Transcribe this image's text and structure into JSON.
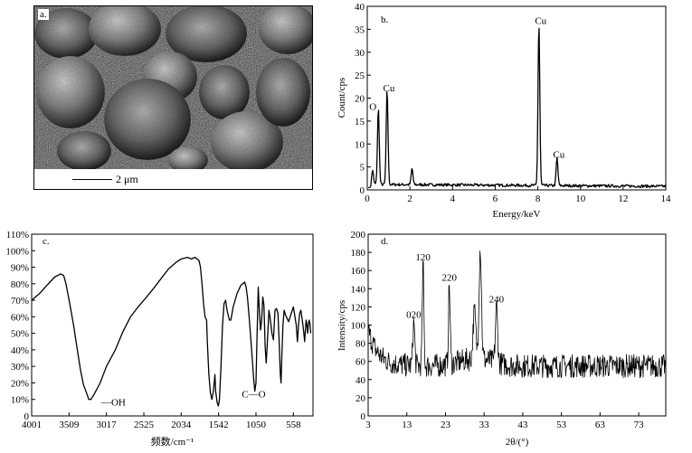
{
  "panel_a": {
    "label": "a.",
    "scale_text": "2 μm"
  },
  "chart_data": [
    {
      "panel": "b.",
      "type": "line",
      "xlabel": "Energy/keV",
      "ylabel": "Count/cps",
      "xlim": [
        0,
        14
      ],
      "ylim": [
        0,
        40
      ],
      "xticks": [
        0,
        2,
        4,
        6,
        8,
        10,
        12,
        14
      ],
      "yticks": [
        0,
        5,
        10,
        15,
        20,
        25,
        30,
        35,
        40
      ],
      "baseline": 1.2,
      "peaks": [
        {
          "x": 0.25,
          "y": 3,
          "label": ""
        },
        {
          "x": 0.52,
          "y": 16.5,
          "label": "O"
        },
        {
          "x": 0.93,
          "y": 20.5,
          "label": "Cu"
        },
        {
          "x": 2.1,
          "y": 3.5,
          "label": ""
        },
        {
          "x": 8.05,
          "y": 35.2,
          "label": "Cu"
        },
        {
          "x": 8.9,
          "y": 6,
          "label": "Cu"
        }
      ]
    },
    {
      "panel": "c.",
      "type": "line",
      "xlabel": "频数/cm⁻¹",
      "ylabel": "",
      "xlim": [
        4001,
        300
      ],
      "ylim": [
        0,
        110
      ],
      "xticks": [
        4001,
        3509,
        3017,
        2525,
        2034,
        1542,
        1050,
        558
      ],
      "ytick_labels": [
        "0",
        "10%",
        "20%",
        "30%",
        "40%",
        "50%",
        "60%",
        "70%",
        "80%",
        "90%",
        "100%",
        "110%"
      ],
      "points": [
        [
          4001,
          70
        ],
        [
          3900,
          74
        ],
        [
          3800,
          79
        ],
        [
          3700,
          84
        ],
        [
          3620,
          86
        ],
        [
          3580,
          85
        ],
        [
          3550,
          80
        ],
        [
          3500,
          68
        ],
        [
          3450,
          55
        ],
        [
          3400,
          40
        ],
        [
          3360,
          28
        ],
        [
          3320,
          19
        ],
        [
          3280,
          14
        ],
        [
          3250,
          10
        ],
        [
          3220,
          10
        ],
        [
          3180,
          13
        ],
        [
          3100,
          20
        ],
        [
          3017,
          30
        ],
        [
          2900,
          40
        ],
        [
          2800,
          51
        ],
        [
          2700,
          60
        ],
        [
          2600,
          66
        ],
        [
          2525,
          70
        ],
        [
          2400,
          77
        ],
        [
          2300,
          83
        ],
        [
          2200,
          89
        ],
        [
          2100,
          93
        ],
        [
          2034,
          95
        ],
        [
          1950,
          96
        ],
        [
          1900,
          95
        ],
        [
          1850,
          96
        ],
        [
          1800,
          94
        ],
        [
          1780,
          90
        ],
        [
          1760,
          80
        ],
        [
          1740,
          68
        ],
        [
          1720,
          60
        ],
        [
          1710,
          59
        ],
        [
          1700,
          58
        ],
        [
          1690,
          45
        ],
        [
          1670,
          25
        ],
        [
          1650,
          14
        ],
        [
          1630,
          10
        ],
        [
          1610,
          15
        ],
        [
          1600,
          20
        ],
        [
          1590,
          25
        ],
        [
          1580,
          15
        ],
        [
          1560,
          8
        ],
        [
          1545,
          6
        ],
        [
          1530,
          10
        ],
        [
          1510,
          30
        ],
        [
          1490,
          55
        ],
        [
          1470,
          68
        ],
        [
          1450,
          70
        ],
        [
          1430,
          64
        ],
        [
          1400,
          58
        ],
        [
          1380,
          58
        ],
        [
          1350,
          66
        ],
        [
          1300,
          74
        ],
        [
          1250,
          79
        ],
        [
          1200,
          81
        ],
        [
          1180,
          78
        ],
        [
          1160,
          71
        ],
        [
          1140,
          60
        ],
        [
          1120,
          48
        ],
        [
          1100,
          35
        ],
        [
          1080,
          22
        ],
        [
          1065,
          15
        ],
        [
          1050,
          20
        ],
        [
          1040,
          40
        ],
        [
          1030,
          60
        ],
        [
          1020,
          78
        ],
        [
          1010,
          68
        ],
        [
          990,
          52
        ],
        [
          975,
          58
        ],
        [
          960,
          72
        ],
        [
          945,
          67
        ],
        [
          930,
          42
        ],
        [
          915,
          32
        ],
        [
          900,
          45
        ],
        [
          880,
          64
        ],
        [
          860,
          58
        ],
        [
          840,
          50
        ],
        [
          820,
          46
        ],
        [
          800,
          64
        ],
        [
          780,
          65
        ],
        [
          760,
          62
        ],
        [
          745,
          45
        ],
        [
          730,
          25
        ],
        [
          720,
          20
        ],
        [
          710,
          35
        ],
        [
          695,
          55
        ],
        [
          680,
          64
        ],
        [
          660,
          61
        ],
        [
          640,
          59
        ],
        [
          620,
          57
        ],
        [
          600,
          60
        ],
        [
          580,
          63
        ],
        [
          558,
          66
        ],
        [
          540,
          61
        ],
        [
          520,
          55
        ],
        [
          505,
          45
        ],
        [
          490,
          55
        ],
        [
          475,
          62
        ],
        [
          460,
          64
        ],
        [
          440,
          58
        ],
        [
          420,
          50
        ],
        [
          410,
          45
        ],
        [
          400,
          52
        ],
        [
          390,
          58
        ],
        [
          380,
          55
        ],
        [
          370,
          50
        ],
        [
          360,
          56
        ],
        [
          350,
          58
        ],
        [
          340,
          56
        ],
        [
          330,
          50
        ]
      ],
      "annotations": [
        {
          "x": 3180,
          "y": 10,
          "text": "—OH"
        },
        {
          "x": 1070,
          "y": 15,
          "text": "C—O"
        }
      ]
    },
    {
      "panel": "d.",
      "type": "line",
      "xlabel": "2θ/(°)",
      "ylabel": "Intensity/cps",
      "xlim": [
        3,
        80
      ],
      "ylim": [
        0,
        200
      ],
      "xticks": [
        3,
        13,
        23,
        33,
        43,
        53,
        63,
        73
      ],
      "yticks": [
        0,
        20,
        40,
        60,
        80,
        100,
        120,
        140,
        160,
        180,
        200
      ],
      "peaks": [
        {
          "x": 14.8,
          "y": 103,
          "w": 0.35,
          "label": "020"
        },
        {
          "x": 17.2,
          "y": 166,
          "w": 0.3,
          "label": "120"
        },
        {
          "x": 24.0,
          "y": 144,
          "w": 0.3,
          "label": "220"
        },
        {
          "x": 30.5,
          "y": 115,
          "w": 0.5,
          "label": ""
        },
        {
          "x": 32.0,
          "y": 185,
          "w": 0.45,
          "label": ""
        },
        {
          "x": 36.2,
          "y": 120,
          "w": 0.4,
          "label": "240"
        }
      ]
    }
  ]
}
